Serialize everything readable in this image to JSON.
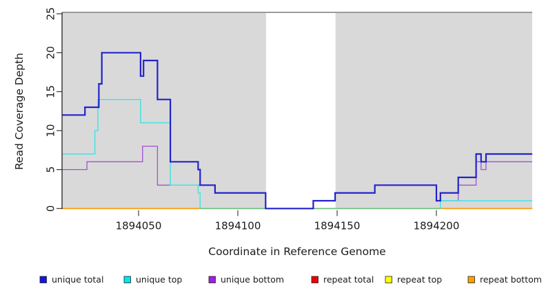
{
  "chart_data": {
    "type": "line",
    "step": true,
    "title": "",
    "xlabel": "Coordinate in Reference Genome",
    "ylabel": "Read Coverage Depth",
    "x_ticks": [
      1894050,
      1894100,
      1894150,
      1894200
    ],
    "y_ticks": [
      0,
      5,
      10,
      15,
      20,
      25
    ],
    "x_range": [
      1894011.5,
      1894248.3
    ],
    "y_range": [
      0,
      25
    ],
    "plot_background": "#d9d9d9",
    "top_border_color": "#8e8e8e",
    "highlight_band": {
      "start": 1894114.2,
      "end": 1894149.2,
      "color": "#ffffff"
    },
    "zero_overlap_segment": {
      "start": 1894081,
      "end": 1894202,
      "value": 0,
      "color": "#6ec27e",
      "note": "unique top at depth 0 drawn over repeat bottom appears pale green"
    },
    "series": [
      {
        "name": "repeat total",
        "color": "#dd0000",
        "width": 1.0,
        "steps": [
          [
            1894011.5,
            0
          ]
        ]
      },
      {
        "name": "repeat top",
        "color": "#ffff00",
        "width": 1.0,
        "steps": [
          [
            1894011.5,
            0
          ]
        ]
      },
      {
        "name": "repeat bottom",
        "color": "#ff9800",
        "width": 1.7,
        "steps": [
          [
            1894011.5,
            0
          ]
        ]
      },
      {
        "name": "unique bottom",
        "color": "#a44fd6",
        "width": 1.3,
        "steps": [
          [
            1894011.5,
            5
          ],
          [
            1894024,
            6
          ],
          [
            1894052,
            8
          ],
          [
            1894059.5,
            3
          ],
          [
            1894088.5,
            2
          ],
          [
            1894114,
            0
          ],
          [
            1894138,
            1
          ],
          [
            1894149,
            2
          ],
          [
            1894169,
            3
          ],
          [
            1894200,
            1
          ],
          [
            1894211,
            3
          ],
          [
            1894220,
            6
          ],
          [
            1894222.5,
            5
          ],
          [
            1894225,
            6
          ]
        ]
      },
      {
        "name": "unique top",
        "color": "#45e2e2",
        "width": 1.5,
        "steps": [
          [
            1894011.5,
            7
          ],
          [
            1894028,
            10
          ],
          [
            1894029.5,
            14
          ],
          [
            1894051,
            11
          ],
          [
            1894066,
            3
          ],
          [
            1894080,
            2
          ],
          [
            1894081,
            0
          ],
          [
            1894202,
            1
          ]
        ]
      },
      {
        "name": "unique total",
        "color": "#2222cc",
        "width": 2.2,
        "steps": [
          [
            1894011.5,
            12
          ],
          [
            1894023,
            13
          ],
          [
            1894030,
            16
          ],
          [
            1894031.5,
            20
          ],
          [
            1894051,
            17
          ],
          [
            1894052.5,
            19
          ],
          [
            1894059.5,
            14
          ],
          [
            1894066,
            6
          ],
          [
            1894080,
            5
          ],
          [
            1894081,
            3
          ],
          [
            1894088.5,
            2
          ],
          [
            1894114,
            0
          ],
          [
            1894138,
            1
          ],
          [
            1894149,
            2
          ],
          [
            1894169,
            3
          ],
          [
            1894200,
            1
          ],
          [
            1894202,
            2
          ],
          [
            1894211,
            4
          ],
          [
            1894220,
            7
          ],
          [
            1894222.5,
            6
          ],
          [
            1894225,
            7
          ]
        ]
      }
    ]
  },
  "legend": {
    "items": [
      {
        "label": "unique total",
        "color": "#1616dd"
      },
      {
        "label": "unique top",
        "color": "#00e4ee"
      },
      {
        "label": "unique bottom",
        "color": "#a020e0"
      },
      {
        "label": "repeat total",
        "color": "#ee0000"
      },
      {
        "label": "repeat top",
        "color": "#ffff00"
      },
      {
        "label": "repeat bottom",
        "color": "#ffa000"
      }
    ]
  }
}
